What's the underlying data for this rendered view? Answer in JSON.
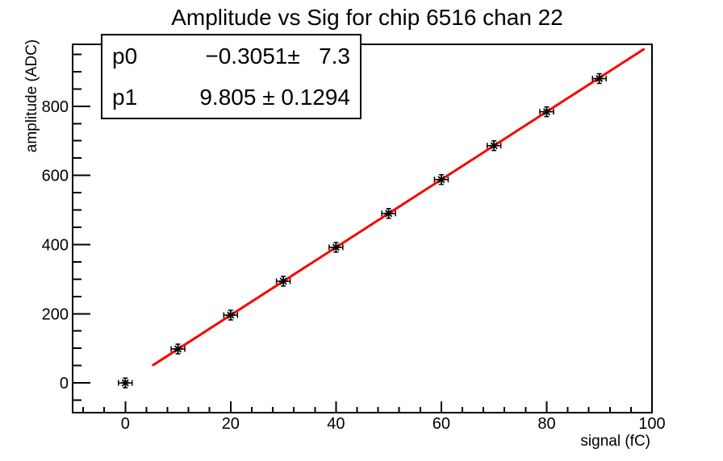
{
  "title": "Amplitude vs Sig for chip 6516 chan 22",
  "stats_box": {
    "rows": [
      {
        "label": "p0",
        "value": "−0.3051±   7.3"
      },
      {
        "label": "p1",
        "value": "9.805 ± 0.1294"
      }
    ]
  },
  "chart_data": {
    "type": "scatter",
    "title": "Amplitude vs Sig for chip 6516 chan 22",
    "xlabel": "signal (fC)",
    "ylabel": "amplitude (ADC)",
    "x": [
      0,
      10,
      20,
      30,
      40,
      50,
      60,
      70,
      80,
      90
    ],
    "y": [
      0,
      98,
      196,
      294,
      392,
      490,
      588,
      686,
      784,
      880
    ],
    "error_x": 1.3,
    "error_y": 14,
    "xlim": [
      -10,
      100
    ],
    "ylim": [
      -86,
      979
    ],
    "x_major_ticks": [
      0,
      20,
      40,
      60,
      80,
      100
    ],
    "x_tick_labels": [
      "0",
      "20",
      "40",
      "60",
      "80",
      "100"
    ],
    "x_minor_step": 4,
    "y_major_ticks": [
      0,
      200,
      400,
      600,
      800
    ],
    "y_tick_labels": [
      "0",
      "200",
      "400",
      "600",
      "800"
    ],
    "y_minor_step": 50,
    "grid": false,
    "legend_position": "none",
    "marker": "asterisk",
    "marker_color": "#000000",
    "frame_color": "#000000",
    "background": "#ffffff",
    "fit": {
      "type": "linear",
      "p0": -0.3051,
      "p0_err": 7.3,
      "p1": 9.805,
      "p1_err": 0.1294,
      "draw_range": [
        5.3,
        98.4
      ],
      "color": "#fb0000",
      "width": 3
    }
  }
}
